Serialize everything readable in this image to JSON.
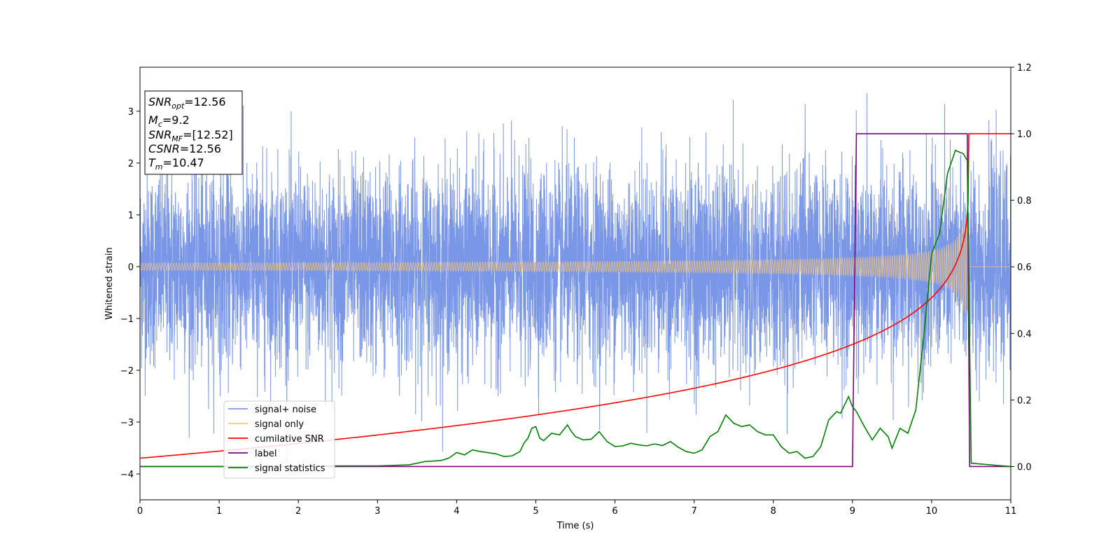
{
  "chart_data": {
    "type": "line",
    "xlabel": "Time (s)",
    "ylabel": "Whitened strain",
    "xlim": [
      0,
      11
    ],
    "ylim_left": [
      -4.5,
      3.85
    ],
    "ylim_right": [
      -0.1,
      1.2
    ],
    "xticks": [
      "0",
      "1",
      "2",
      "3",
      "4",
      "5",
      "6",
      "7",
      "8",
      "9",
      "10",
      "11"
    ],
    "yticks_left": [
      "−4",
      "−3",
      "−2",
      "−1",
      "0",
      "1",
      "2",
      "3"
    ],
    "yticks_right": [
      "0.0",
      "0.2",
      "0.4",
      "0.6",
      "0.8",
      "1.0",
      "1.2"
    ],
    "legend_position": "lower-left",
    "info_box": {
      "snr_opt": {
        "sym": "SNR",
        "sub": "opt",
        "val": "=12.56"
      },
      "mc": {
        "sym": "M",
        "sub": "c",
        "val": "=9.2"
      },
      "snr_mf": {
        "sym": "SNR",
        "sub": "MF",
        "val": "=[12.52]"
      },
      "csnr": {
        "sym": "CSNR",
        "sub": "",
        "val": "=12.56"
      },
      "tm": {
        "sym": "T",
        "sub": "m",
        "val": "=10.47"
      }
    },
    "series": [
      {
        "name": "signal+ noise",
        "color": "#7a96e6",
        "axis": "left",
        "sigma": 0.95,
        "x_range": [
          0,
          11
        ]
      },
      {
        "name": "signal only",
        "color": "#ffc870",
        "axis": "left",
        "merger_time": 10.47,
        "peak_amplitude": 0.9
      },
      {
        "name": "cumilative SNR",
        "color": "#ff0000",
        "axis": "right",
        "x": [
          0,
          1,
          2,
          3,
          4,
          5,
          6,
          7,
          8,
          8.5,
          9,
          9.5,
          9.8,
          10,
          10.2,
          10.35,
          10.45,
          10.47,
          11
        ],
        "y": [
          0.01,
          0.07,
          0.095,
          0.12,
          0.15,
          0.18,
          0.21,
          0.25,
          0.305,
          0.34,
          0.39,
          0.46,
          0.53,
          0.61,
          0.72,
          0.85,
          0.97,
          1.0,
          1.0
        ]
      },
      {
        "name": "label",
        "color": "#800080",
        "axis": "right",
        "x": [
          0,
          9.0,
          9.05,
          10.45,
          10.48,
          11
        ],
        "y": [
          0,
          0,
          1,
          1,
          0,
          0
        ]
      },
      {
        "name": "signal statistics",
        "color": "#008000",
        "axis": "right",
        "x": [
          0,
          1,
          2,
          2.5,
          3,
          3.4,
          3.6,
          3.8,
          3.9,
          4.0,
          4.1,
          4.2,
          4.3,
          4.5,
          4.6,
          4.7,
          4.8,
          4.85,
          4.9,
          4.95,
          5.0,
          5.05,
          5.1,
          5.2,
          5.3,
          5.4,
          5.45,
          5.5,
          5.6,
          5.7,
          5.8,
          5.9,
          6.0,
          6.1,
          6.2,
          6.3,
          6.4,
          6.5,
          6.6,
          6.7,
          6.8,
          6.9,
          7.0,
          7.1,
          7.2,
          7.3,
          7.4,
          7.5,
          7.6,
          7.7,
          7.8,
          7.9,
          8.0,
          8.1,
          8.2,
          8.3,
          8.4,
          8.5,
          8.6,
          8.7,
          8.8,
          8.85,
          8.95,
          9.0,
          9.05,
          9.15,
          9.25,
          9.35,
          9.45,
          9.5,
          9.6,
          9.7,
          9.8,
          9.9,
          10.0,
          10.1,
          10.2,
          10.3,
          10.4,
          10.45,
          10.5,
          11.0
        ],
        "y": [
          0.0,
          0.0,
          0.001,
          0.002,
          0.002,
          0.005,
          0.015,
          0.018,
          0.025,
          0.042,
          0.035,
          0.05,
          0.045,
          0.038,
          0.03,
          0.032,
          0.045,
          0.07,
          0.085,
          0.115,
          0.12,
          0.085,
          0.078,
          0.1,
          0.095,
          0.125,
          0.105,
          0.09,
          0.08,
          0.082,
          0.105,
          0.075,
          0.06,
          0.062,
          0.07,
          0.065,
          0.062,
          0.068,
          0.063,
          0.075,
          0.058,
          0.045,
          0.04,
          0.05,
          0.09,
          0.105,
          0.155,
          0.13,
          0.12,
          0.125,
          0.105,
          0.095,
          0.095,
          0.06,
          0.04,
          0.045,
          0.025,
          0.03,
          0.06,
          0.14,
          0.165,
          0.16,
          0.21,
          0.18,
          0.165,
          0.12,
          0.08,
          0.115,
          0.09,
          0.055,
          0.115,
          0.1,
          0.17,
          0.39,
          0.64,
          0.7,
          0.88,
          0.95,
          0.94,
          0.92,
          0.01,
          0.0
        ]
      }
    ]
  }
}
